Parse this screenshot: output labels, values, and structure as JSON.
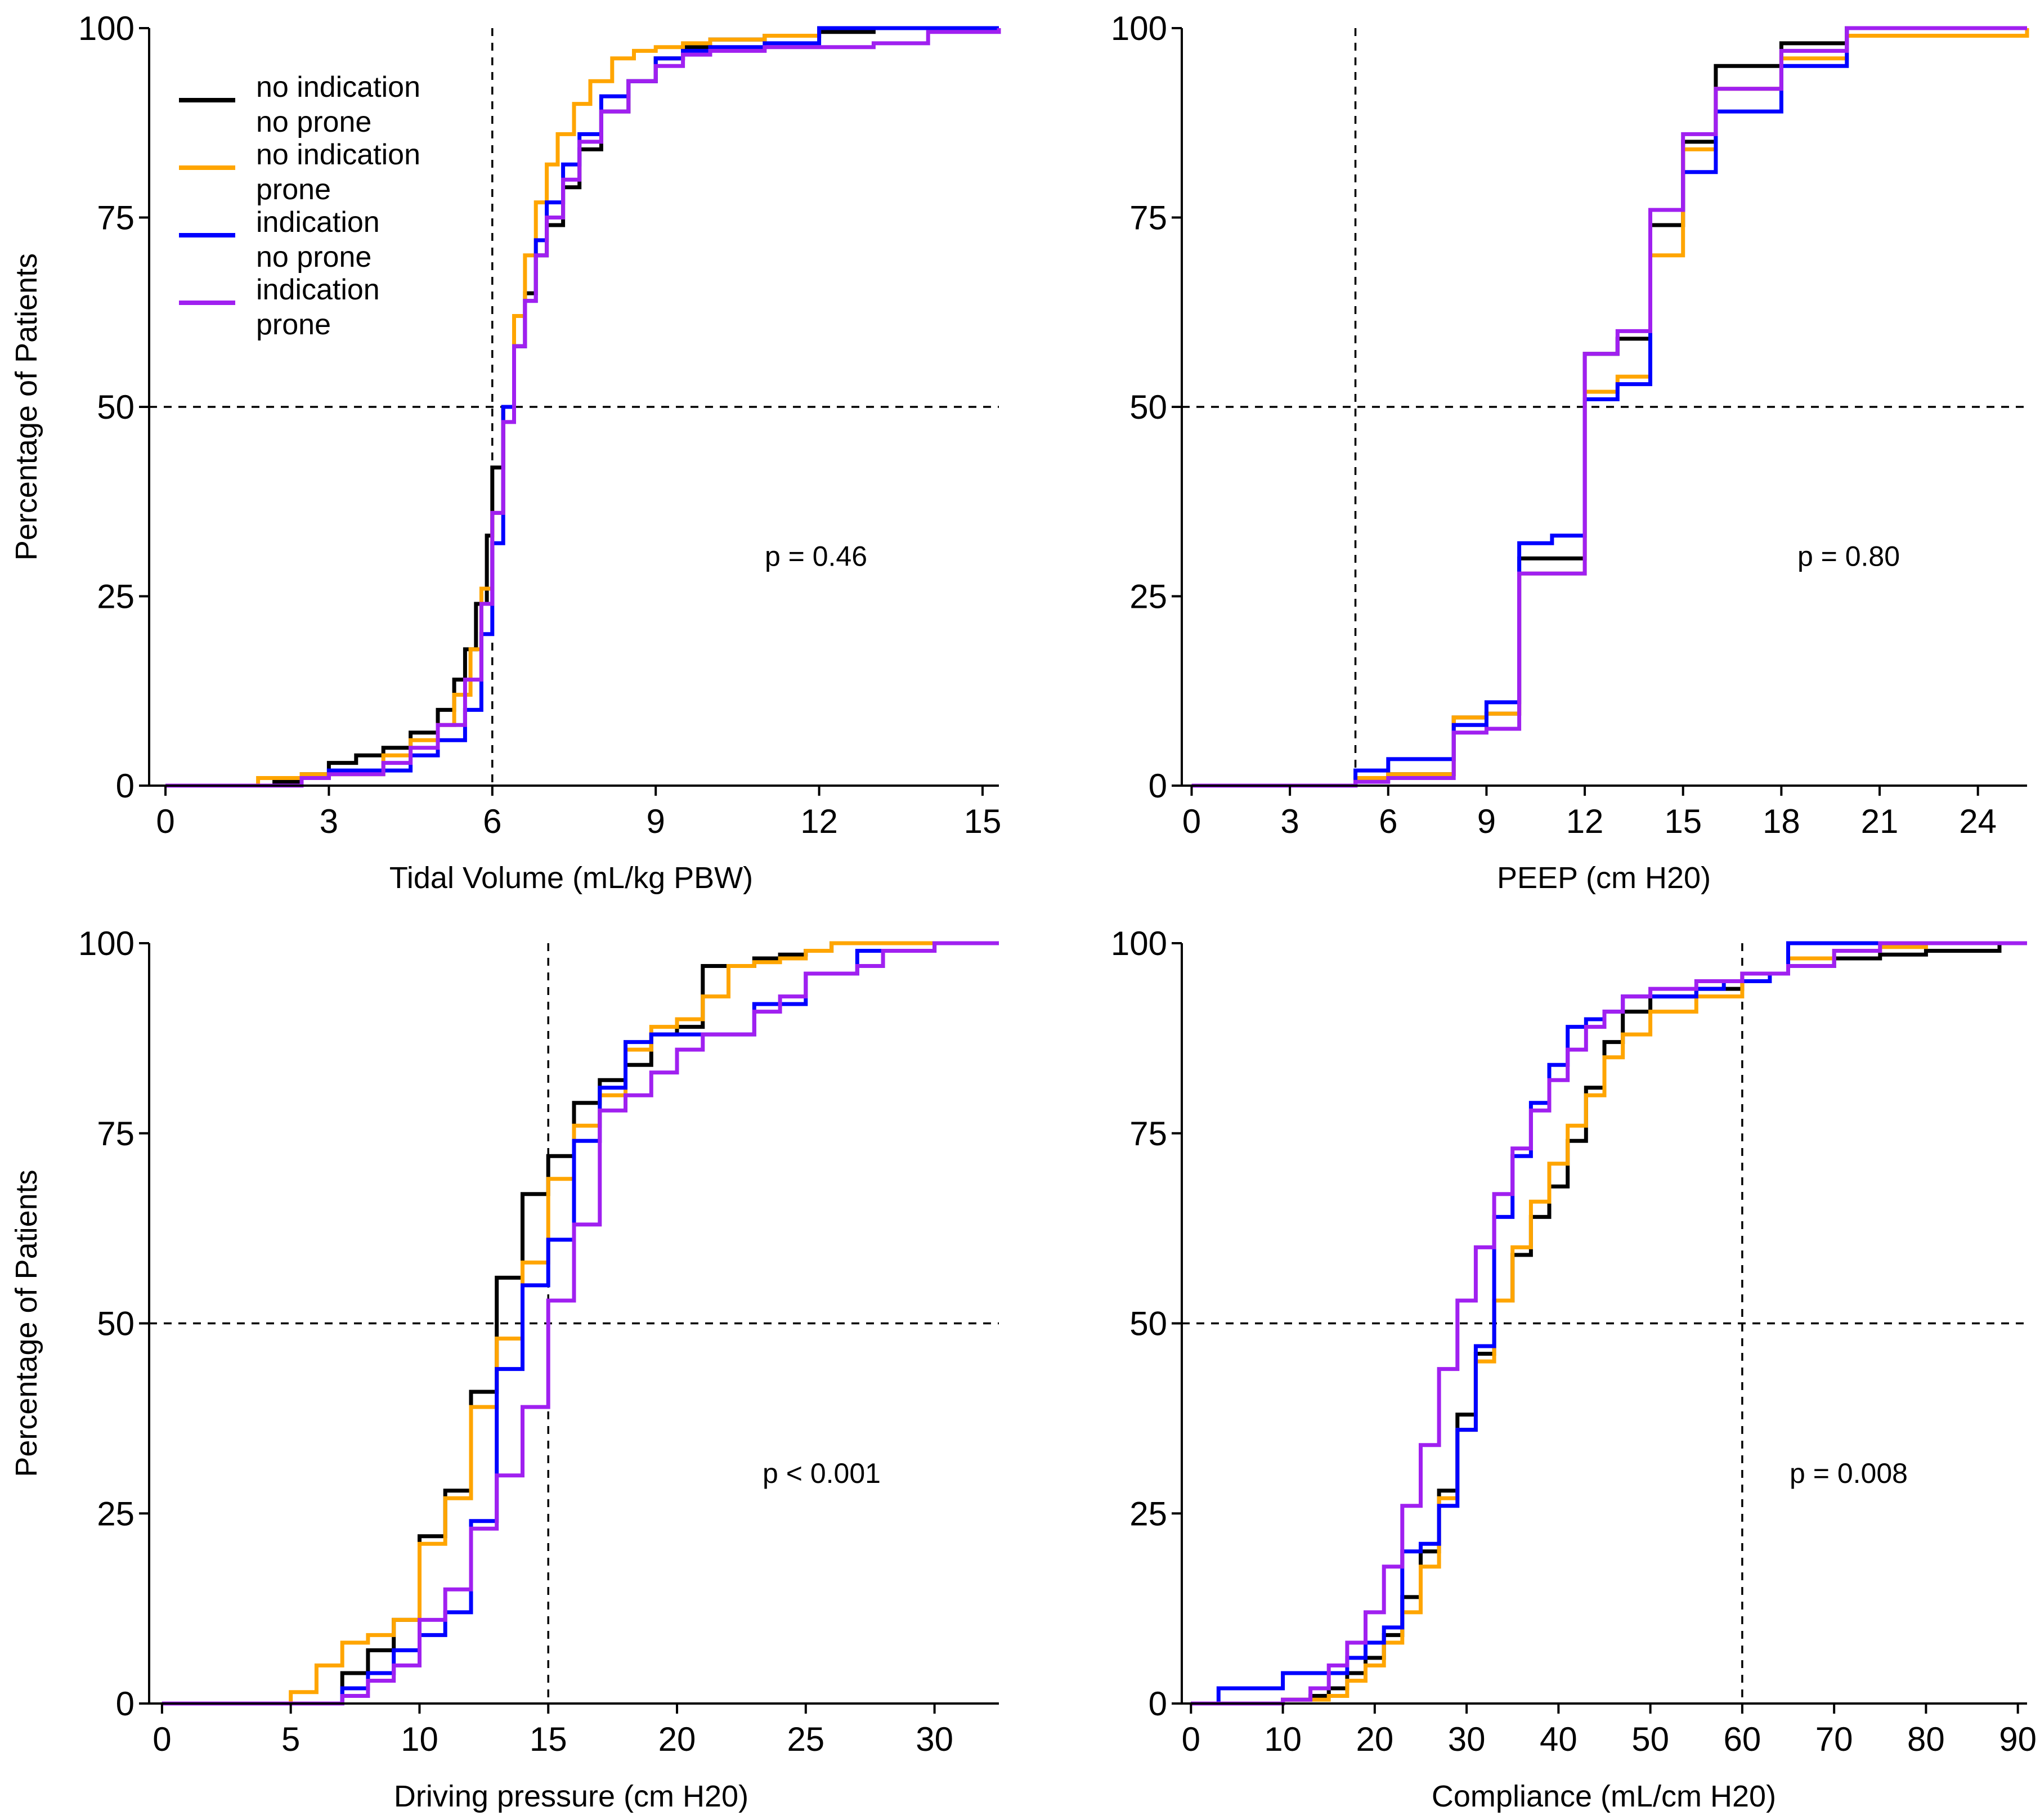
{
  "legend": [
    {
      "lines": [
        "no indication",
        "no prone"
      ],
      "color": "#000000"
    },
    {
      "lines": [
        "no indication",
        "prone"
      ],
      "color": "#FFA500"
    },
    {
      "lines": [
        "indication",
        "no prone"
      ],
      "color": "#0000FF"
    },
    {
      "lines": [
        "indication",
        "prone"
      ],
      "color": "#A020F0"
    }
  ],
  "chart_data": [
    {
      "type": "line",
      "id": "tidal",
      "xlabel": "Tidal Volume (mL/kg PBW)",
      "ylabel": "Percentage of Patients",
      "xlim": [
        -0.3,
        15.3
      ],
      "ylim": [
        0,
        100
      ],
      "xticks": [
        0,
        3,
        6,
        9,
        12,
        15
      ],
      "yticks": [
        0,
        25,
        50,
        75,
        100
      ],
      "vline": 6,
      "hline": 50,
      "annotation": "p = 0.46",
      "series": [
        {
          "color": "#000000",
          "x": [
            0,
            2.0,
            2.5,
            3.0,
            3.5,
            4.0,
            4.5,
            5.0,
            5.3,
            5.5,
            5.7,
            5.9,
            6.0,
            6.2,
            6.4,
            6.6,
            6.8,
            7.0,
            7.3,
            7.6,
            8.0,
            8.5,
            9.0,
            9.5,
            10.0,
            11.0,
            12.0,
            13.0,
            14.0,
            15.3
          ],
          "y": [
            0,
            0.5,
            1.5,
            3,
            4,
            5,
            7,
            10,
            14,
            18,
            24,
            33,
            42,
            50,
            58,
            65,
            70,
            74,
            79,
            84,
            89,
            93,
            96,
            97.5,
            98.5,
            99,
            99.5,
            100,
            100,
            100
          ]
        },
        {
          "color": "#FFA500",
          "x": [
            0,
            1.7,
            2.5,
            3.0,
            4.0,
            4.5,
            5.0,
            5.3,
            5.6,
            5.8,
            6.0,
            6.2,
            6.4,
            6.6,
            6.8,
            7.0,
            7.2,
            7.5,
            7.8,
            8.2,
            8.6,
            9.0,
            9.5,
            10.0,
            11.0,
            12.0,
            15.3
          ],
          "y": [
            0,
            1,
            1.5,
            1.5,
            4,
            6,
            8,
            12,
            18,
            26,
            36,
            50,
            62,
            70,
            77,
            82,
            86,
            90,
            93,
            96,
            97,
            97.5,
            98,
            98.5,
            99,
            100,
            100
          ]
        },
        {
          "color": "#0000FF",
          "x": [
            0,
            2.5,
            3.0,
            4.0,
            4.5,
            5.0,
            5.5,
            5.8,
            6.0,
            6.2,
            6.4,
            6.6,
            6.8,
            7.0,
            7.3,
            7.6,
            8.0,
            8.5,
            9.0,
            9.5,
            10.0,
            11.0,
            12.0,
            15.3
          ],
          "y": [
            0,
            1,
            2,
            2,
            4,
            6,
            10,
            20,
            32,
            50,
            58,
            64,
            72,
            77,
            82,
            86,
            91,
            93,
            96,
            97,
            97.5,
            98,
            100,
            100
          ]
        },
        {
          "color": "#A020F0",
          "x": [
            0,
            2.5,
            3.0,
            4.0,
            4.5,
            5.0,
            5.5,
            5.8,
            6.0,
            6.2,
            6.4,
            6.6,
            6.8,
            7.0,
            7.3,
            7.6,
            8.0,
            8.5,
            9.0,
            9.5,
            10.0,
            11.0,
            12.0,
            13.0,
            14.0,
            15.3
          ],
          "y": [
            0,
            1,
            1.5,
            3,
            5,
            8,
            14,
            24,
            36,
            48,
            58,
            64,
            70,
            75,
            80,
            85,
            89,
            93,
            95,
            96.5,
            97,
            97.5,
            97.5,
            98,
            99.5,
            100
          ]
        }
      ]
    },
    {
      "type": "line",
      "id": "peep",
      "xlabel": "PEEP (cm H20)",
      "ylabel": "",
      "xlim": [
        -0.3,
        25.5
      ],
      "ylim": [
        0,
        100
      ],
      "xticks": [
        0,
        3,
        6,
        9,
        12,
        15,
        18,
        21,
        24
      ],
      "yticks": [
        0,
        25,
        50,
        75,
        100
      ],
      "vline": 5,
      "hline": 50,
      "annotation": "p = 0.80",
      "series": [
        {
          "color": "#000000",
          "x": [
            0,
            5,
            6,
            8,
            9,
            10,
            12,
            13,
            14,
            15,
            16,
            18,
            20,
            25.5
          ],
          "y": [
            0,
            1,
            1.5,
            9,
            9.5,
            30,
            57,
            59,
            74,
            85,
            95,
            98,
            100,
            100
          ]
        },
        {
          "color": "#FFA500",
          "x": [
            0,
            5,
            6,
            8,
            9,
            10,
            12,
            13,
            14,
            15,
            16,
            18,
            20,
            25.5
          ],
          "y": [
            0,
            1,
            1.5,
            9,
            9.5,
            28,
            52,
            54,
            70,
            84,
            92,
            96,
            99,
            100
          ]
        },
        {
          "color": "#0000FF",
          "x": [
            0,
            5,
            6,
            8,
            9,
            10,
            11,
            12,
            13,
            14,
            15,
            16,
            18,
            20,
            25.5
          ],
          "y": [
            0,
            2,
            3.5,
            8,
            11,
            32,
            33,
            51,
            53,
            76,
            81,
            89,
            95,
            100,
            100
          ]
        },
        {
          "color": "#A020F0",
          "x": [
            0,
            5,
            6,
            8,
            9,
            10,
            12,
            13,
            14,
            15,
            16,
            18,
            20,
            25.5
          ],
          "y": [
            0,
            0.5,
            1,
            7,
            7.5,
            28,
            57,
            60,
            76,
            86,
            92,
            97,
            100,
            100
          ]
        }
      ]
    },
    {
      "type": "line",
      "id": "driving",
      "xlabel": "Driving pressure (cm H20)",
      "ylabel": "Percentage of Patients",
      "xlim": [
        -0.5,
        32.5
      ],
      "ylim": [
        0,
        100
      ],
      "xticks": [
        0,
        5,
        10,
        15,
        20,
        25,
        30
      ],
      "yticks": [
        0,
        25,
        50,
        75,
        100
      ],
      "vline": 15,
      "hline": 50,
      "annotation": "p < 0.001",
      "series": [
        {
          "color": "#000000",
          "x": [
            0,
            7,
            8,
            9,
            10,
            11,
            12,
            13,
            14,
            15,
            16,
            17,
            18,
            19,
            20,
            21,
            22,
            23,
            24,
            25,
            26,
            32.5
          ],
          "y": [
            0,
            4,
            7,
            11,
            22,
            28,
            41,
            56,
            67,
            72,
            79,
            82,
            84,
            88,
            89,
            97,
            97,
            98,
            98.5,
            99,
            100,
            100
          ]
        },
        {
          "color": "#FFA500",
          "x": [
            0,
            5,
            6,
            7,
            8,
            9,
            10,
            11,
            12,
            13,
            14,
            15,
            16,
            17,
            18,
            19,
            20,
            21,
            22,
            23,
            24,
            25,
            26,
            32.5
          ],
          "y": [
            0,
            1.5,
            5,
            8,
            9,
            11,
            21,
            27,
            39,
            48,
            58,
            69,
            76,
            80,
            86,
            89,
            90,
            93,
            97,
            97.5,
            98,
            99,
            100,
            100
          ]
        },
        {
          "color": "#0000FF",
          "x": [
            0,
            7,
            8,
            9,
            10,
            11,
            12,
            13,
            14,
            15,
            16,
            17,
            18,
            19,
            20,
            21,
            22,
            23,
            24,
            25,
            26,
            27,
            28,
            30,
            32.5
          ],
          "y": [
            0,
            2,
            4,
            7,
            9,
            12,
            24,
            44,
            55,
            61,
            74,
            81,
            87,
            88,
            88,
            88,
            88,
            92,
            92,
            96,
            96,
            99,
            99,
            100,
            100
          ]
        },
        {
          "color": "#A020F0",
          "x": [
            0,
            7,
            8,
            9,
            10,
            11,
            12,
            13,
            14,
            15,
            16,
            17,
            18,
            19,
            20,
            21,
            22,
            23,
            24,
            25,
            26,
            27,
            28,
            30,
            32.5
          ],
          "y": [
            0,
            1,
            3,
            5,
            11,
            15,
            23,
            30,
            39,
            53,
            63,
            78,
            80,
            83,
            86,
            88,
            88,
            91,
            93,
            96,
            96,
            97,
            99,
            100,
            100
          ]
        }
      ]
    },
    {
      "type": "line",
      "id": "compliance",
      "xlabel": "Compliance (mL/cm H20)",
      "ylabel": "",
      "xlim": [
        -1,
        91
      ],
      "ylim": [
        0,
        100
      ],
      "xticks": [
        0,
        10,
        20,
        30,
        40,
        50,
        60,
        70,
        80,
        90
      ],
      "yticks": [
        0,
        25,
        50,
        75,
        100
      ],
      "vline": 60,
      "hline": 50,
      "annotation": "p = 0.008",
      "series": [
        {
          "color": "#000000",
          "x": [
            0,
            10,
            13,
            15,
            17,
            19,
            21,
            23,
            25,
            27,
            29,
            31,
            33,
            35,
            37,
            39,
            41,
            43,
            45,
            47,
            50,
            55,
            60,
            65,
            70,
            75,
            80,
            85,
            88,
            91
          ],
          "y": [
            0,
            0.5,
            1,
            2,
            4,
            6,
            9,
            14,
            20,
            28,
            38,
            46,
            53,
            59,
            64,
            68,
            74,
            81,
            87,
            91,
            93,
            94,
            96,
            97,
            98,
            98.5,
            99,
            99,
            100,
            100
          ]
        },
        {
          "color": "#FFA500",
          "x": [
            0,
            10,
            15,
            17,
            19,
            21,
            23,
            25,
            27,
            29,
            31,
            33,
            35,
            37,
            39,
            41,
            43,
            45,
            47,
            50,
            55,
            60,
            65,
            70,
            75,
            80,
            91
          ],
          "y": [
            0,
            0.5,
            1,
            3,
            5,
            8,
            12,
            18,
            27,
            36,
            45,
            53,
            60,
            66,
            71,
            76,
            80,
            85,
            88,
            91,
            93,
            96,
            98,
            99,
            99.5,
            100,
            100
          ]
        },
        {
          "color": "#0000FF",
          "x": [
            0,
            3,
            10,
            15,
            17,
            19,
            21,
            23,
            25,
            27,
            29,
            31,
            33,
            35,
            37,
            39,
            41,
            43,
            45,
            47,
            50,
            55,
            58,
            60,
            63,
            65,
            70,
            91
          ],
          "y": [
            0,
            2,
            4,
            4,
            6,
            8,
            10,
            20,
            21,
            26,
            36,
            47,
            64,
            72,
            79,
            84,
            89,
            90,
            91,
            93,
            93,
            94,
            95,
            95,
            96,
            100,
            100,
            100
          ]
        },
        {
          "color": "#A020F0",
          "x": [
            0,
            10,
            13,
            15,
            17,
            19,
            21,
            23,
            25,
            27,
            29,
            31,
            33,
            35,
            37,
            39,
            41,
            43,
            45,
            47,
            50,
            55,
            60,
            65,
            70,
            75,
            91
          ],
          "y": [
            0,
            0.5,
            2,
            5,
            8,
            12,
            18,
            26,
            34,
            44,
            53,
            60,
            67,
            73,
            78,
            82,
            86,
            89,
            91,
            93,
            94,
            95,
            96,
            97,
            99,
            100,
            100
          ]
        }
      ]
    }
  ]
}
